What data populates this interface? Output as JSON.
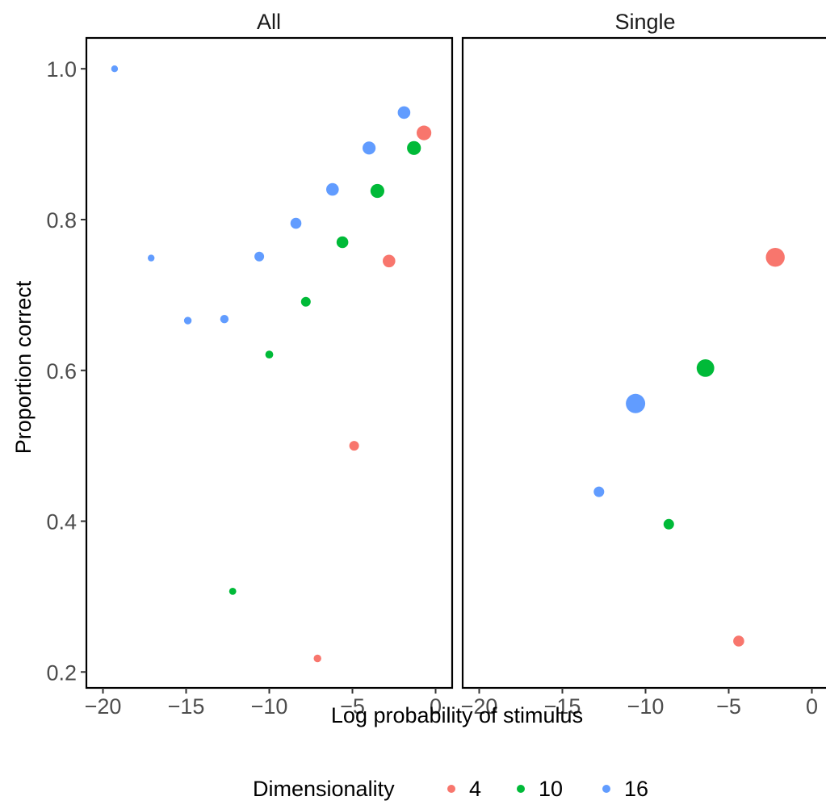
{
  "chart_data": {
    "type": "scatter",
    "xlabel": "Log probability of stimulus",
    "ylabel": "Proportion correct",
    "xlim": [
      -20,
      0
    ],
    "ylim": [
      0.2,
      1.0
    ],
    "x_ticks": [
      -20,
      -15,
      -10,
      -5,
      0
    ],
    "x_tick_labels": [
      "−20",
      "−15",
      "−10",
      "−5",
      "0"
    ],
    "y_ticks": [
      0.2,
      0.4,
      0.6,
      0.8,
      1.0
    ],
    "y_tick_labels": [
      "0.2",
      "0.4",
      "0.6",
      "0.8",
      "1.0"
    ],
    "grid": false,
    "legend": {
      "title": "Dimensionality",
      "placement": "bottom",
      "entries": [
        {
          "label": "4",
          "color": "#F8766D"
        },
        {
          "label": "10",
          "color": "#00BA38"
        },
        {
          "label": "16",
          "color": "#619CFF"
        }
      ]
    },
    "panels": [
      {
        "title": "All",
        "points": [
          {
            "group": "4",
            "x": -0.7,
            "y": 0.915,
            "size": 3
          },
          {
            "group": "4",
            "x": -2.8,
            "y": 0.745,
            "size": 2.5
          },
          {
            "group": "4",
            "x": -4.9,
            "y": 0.5,
            "size": 1.8
          },
          {
            "group": "4",
            "x": -7.1,
            "y": 0.218,
            "size": 1.3
          },
          {
            "group": "10",
            "x": -1.3,
            "y": 0.895,
            "size": 2.8
          },
          {
            "group": "10",
            "x": -3.5,
            "y": 0.838,
            "size": 2.8
          },
          {
            "group": "10",
            "x": -5.6,
            "y": 0.77,
            "size": 2.3
          },
          {
            "group": "10",
            "x": -7.8,
            "y": 0.691,
            "size": 1.8
          },
          {
            "group": "10",
            "x": -10.0,
            "y": 0.621,
            "size": 1.4
          },
          {
            "group": "10",
            "x": -12.2,
            "y": 0.307,
            "size": 1.2
          },
          {
            "group": "16",
            "x": -1.9,
            "y": 0.942,
            "size": 2.5
          },
          {
            "group": "16",
            "x": -4.0,
            "y": 0.895,
            "size": 2.6
          },
          {
            "group": "16",
            "x": -6.2,
            "y": 0.84,
            "size": 2.5
          },
          {
            "group": "16",
            "x": -8.4,
            "y": 0.795,
            "size": 2.1
          },
          {
            "group": "16",
            "x": -10.6,
            "y": 0.751,
            "size": 1.8
          },
          {
            "group": "16",
            "x": -12.7,
            "y": 0.668,
            "size": 1.5
          },
          {
            "group": "16",
            "x": -14.9,
            "y": 0.666,
            "size": 1.3
          },
          {
            "group": "16",
            "x": -17.1,
            "y": 0.749,
            "size": 1.1
          },
          {
            "group": "16",
            "x": -19.3,
            "y": 1.0,
            "size": 1.1
          }
        ]
      },
      {
        "title": "Single",
        "points": [
          {
            "group": "4",
            "x": -2.2,
            "y": 0.75,
            "size": 4
          },
          {
            "group": "4",
            "x": -4.4,
            "y": 0.241,
            "size": 2.1
          },
          {
            "group": "10",
            "x": -6.4,
            "y": 0.603,
            "size": 3.7
          },
          {
            "group": "10",
            "x": -8.6,
            "y": 0.396,
            "size": 2
          },
          {
            "group": "16",
            "x": -10.6,
            "y": 0.556,
            "size": 4.1
          },
          {
            "group": "16",
            "x": -12.8,
            "y": 0.439,
            "size": 2
          }
        ]
      }
    ]
  }
}
